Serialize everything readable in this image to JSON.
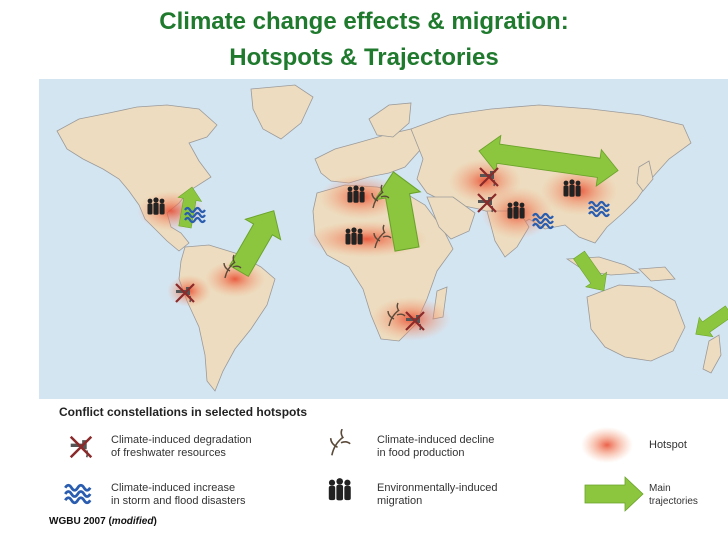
{
  "header": {
    "title_line1": "Climate change effects & migration:",
    "title_line2": "Hotspots & Trajectories"
  },
  "colors": {
    "title": "#1f7a2e",
    "ocean": "#d4e5f2",
    "land": "#eddcbf",
    "border": "#9a9a9a",
    "hotspot": "#e8452a",
    "arrow": "#8cc63f"
  },
  "map": {
    "hotspot_regions": [
      "Central America & Caribbean",
      "Andes",
      "Amazon",
      "North Africa",
      "Sahel",
      "Southern Africa",
      "Central Asia",
      "South Asia",
      "China"
    ],
    "markers": [
      {
        "region": "Central America & Caribbean",
        "icons": [
          "migration-icon",
          "storm-flood-icon"
        ]
      },
      {
        "region": "Andes",
        "icons": [
          "freshwater-icon"
        ]
      },
      {
        "region": "Amazon",
        "icons": [
          "food-decline-icon"
        ]
      },
      {
        "region": "North Africa",
        "icons": [
          "migration-icon",
          "food-decline-icon"
        ]
      },
      {
        "region": "Sahel",
        "icons": [
          "migration-icon",
          "food-decline-icon"
        ]
      },
      {
        "region": "Southern Africa",
        "icons": [
          "food-decline-icon",
          "freshwater-icon"
        ]
      },
      {
        "region": "Central Asia",
        "icons": [
          "freshwater-icon"
        ]
      },
      {
        "region": "South Asia",
        "icons": [
          "freshwater-icon",
          "migration-icon",
          "storm-flood-icon"
        ]
      },
      {
        "region": "China",
        "icons": [
          "migration-icon",
          "storm-flood-icon"
        ]
      }
    ],
    "trajectories": [
      "Caribbean to North America",
      "Amazon to North America",
      "Africa to Europe",
      "Central Asia to East Asia (two-way)",
      "Southeast Asia to Australia",
      "Pacific Islands to New Zealand"
    ]
  },
  "legend": {
    "heading": "Conflict constellations in selected hotspots",
    "items": {
      "freshwater": {
        "icon": "freshwater-icon",
        "line1": "Climate-induced degradation",
        "line2": "of freshwater resources"
      },
      "food": {
        "icon": "food-decline-icon",
        "line1": "Climate-induced decline",
        "line2": "in food production"
      },
      "hotspot": {
        "icon": "hotspot-icon",
        "line1": "Hotspot"
      },
      "storm": {
        "icon": "storm-flood-icon",
        "line1": "Climate-induced increase",
        "line2": "in storm and flood disasters"
      },
      "migration": {
        "icon": "migration-icon",
        "line1": "Environmentally-induced",
        "line2": "migration"
      },
      "trajectories": {
        "icon": "trajectory-arrow-icon",
        "line1": "Main",
        "line2": "trajectories"
      }
    }
  },
  "credit": {
    "source": "WGBU 2007 (",
    "note": "modified",
    "close": ")"
  }
}
